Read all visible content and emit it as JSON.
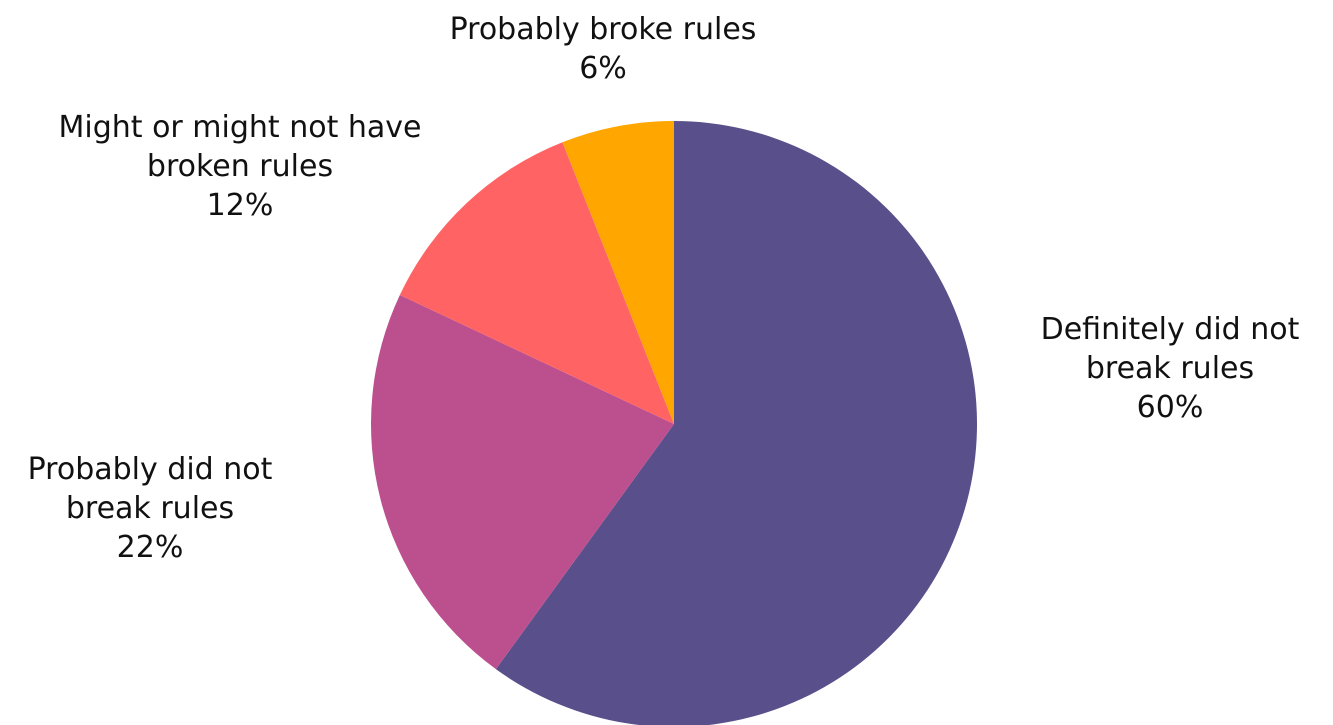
{
  "chart_data": {
    "type": "pie",
    "start_angle_deg": 0,
    "direction": "clockwise",
    "slices": [
      {
        "name": "Definitely did not break rules",
        "value": 60,
        "color": "#59508b",
        "label_lines": [
          "Definitely did not",
          "break rules"
        ],
        "value_label": "60%"
      },
      {
        "name": "Probably did not break rules",
        "value": 22,
        "color": "#bc508f",
        "label_lines": [
          "Probably did not",
          "break rules"
        ],
        "value_label": "22%"
      },
      {
        "name": "Might or might not have broken rules",
        "value": 12,
        "color": "#ff6363",
        "label_lines": [
          "Might or might not have",
          "broken rules"
        ],
        "value_label": "12%"
      },
      {
        "name": "Probably broke rules",
        "value": 6,
        "color": "#ffa601",
        "label_lines": [
          "Probably broke rules"
        ],
        "value_label": "6%"
      }
    ]
  }
}
